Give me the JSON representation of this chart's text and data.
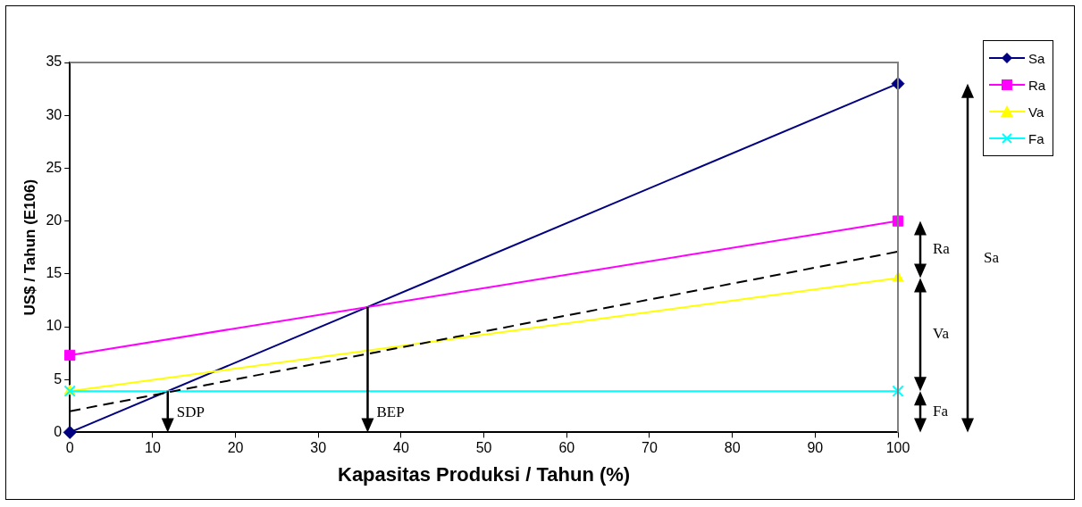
{
  "chart_data": {
    "type": "line",
    "xlabel": "Kapasitas Produksi / Tahun (%)",
    "ylabel": "US$ / Tahun (E106)",
    "x": [
      0,
      100
    ],
    "series": [
      {
        "name": "Sa",
        "color": "#000080",
        "values": [
          0,
          33
        ],
        "marker": "diamond"
      },
      {
        "name": "Ra",
        "color": "#ff00ff",
        "values": [
          7.3,
          20
        ],
        "marker": "square"
      },
      {
        "name": "Va",
        "color": "#ffff00",
        "values": [
          3.9,
          14.6
        ],
        "marker": "triangle"
      },
      {
        "name": "Fa",
        "color": "#00ffff",
        "values": [
          3.9,
          3.9
        ],
        "marker": "cross"
      },
      {
        "color": "#000000",
        "values": [
          2,
          17.1
        ],
        "marker": "none",
        "line_style": "dashed"
      }
    ],
    "xlim": [
      0,
      100
    ],
    "xticks": [
      0,
      10,
      20,
      30,
      40,
      50,
      60,
      70,
      80,
      90,
      100
    ],
    "ylim": [
      0,
      35
    ],
    "yticks": [
      0,
      5,
      10,
      15,
      20,
      25,
      30,
      35
    ],
    "grid": false,
    "legend": "top right",
    "annotations": [
      "SDP",
      "BEP",
      "Sa",
      "Ra",
      "Va",
      "Fa"
    ]
  }
}
